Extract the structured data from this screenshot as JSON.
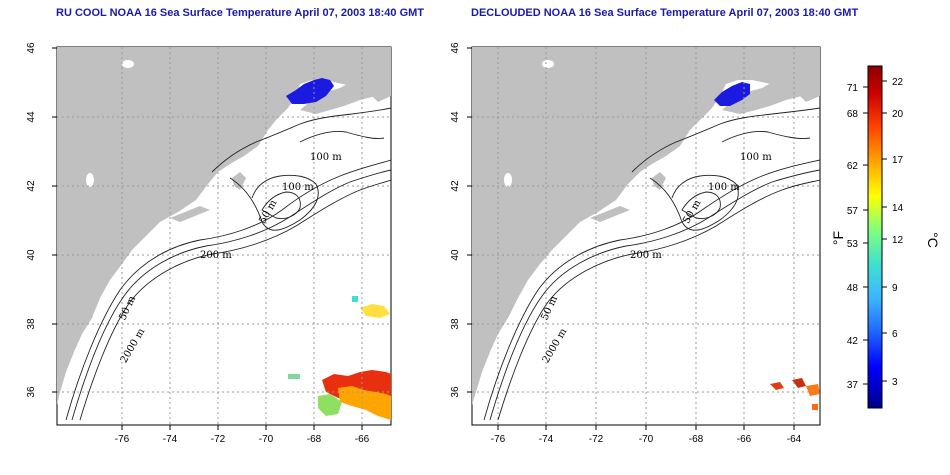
{
  "titles": {
    "left": "RU COOL NOAA 16 Sea Surface Temperature April 07, 2003 18:40 GMT",
    "right": "DECLOUDED NOAA 16 Sea Surface Temperature April 07, 2003 18:40 GMT"
  },
  "axes": {
    "x_ticks": [
      "-76",
      "-74",
      "-72",
      "-70",
      "-68",
      "-66",
      "-64"
    ],
    "y_ticks": [
      "46",
      "44",
      "42",
      "40",
      "38",
      "36"
    ],
    "lon_range": [
      -77,
      -63
    ],
    "lat_range": [
      35,
      46
    ],
    "grid": "dotted"
  },
  "contour_labels": {
    "m100a": "100 m",
    "m100b": "100 m",
    "m50a": "50 m",
    "m200": "200 m",
    "m50b": "50 m",
    "m2000": "2000 m"
  },
  "colorbar": {
    "fahrenheit_unit": "°F",
    "celsius_unit": "°C",
    "fahrenheit_ticks": [
      "71",
      "68",
      "62",
      "57",
      "53",
      "48",
      "42",
      "37"
    ],
    "celsius_ticks": [
      "22",
      "20",
      "17",
      "14",
      "12",
      "9",
      "6",
      "3"
    ],
    "colors": [
      "#00008b",
      "#0000ff",
      "#1e64ff",
      "#3cb4ff",
      "#40e0d0",
      "#7fff7f",
      "#ffff00",
      "#ffa500",
      "#ff4500",
      "#cc0000",
      "#8b0000"
    ]
  },
  "colors": {
    "land": "#c0c0c0",
    "ocean": "#ffffff",
    "title": "#1a1aa6",
    "cold_water": "#1a1ae0"
  }
}
